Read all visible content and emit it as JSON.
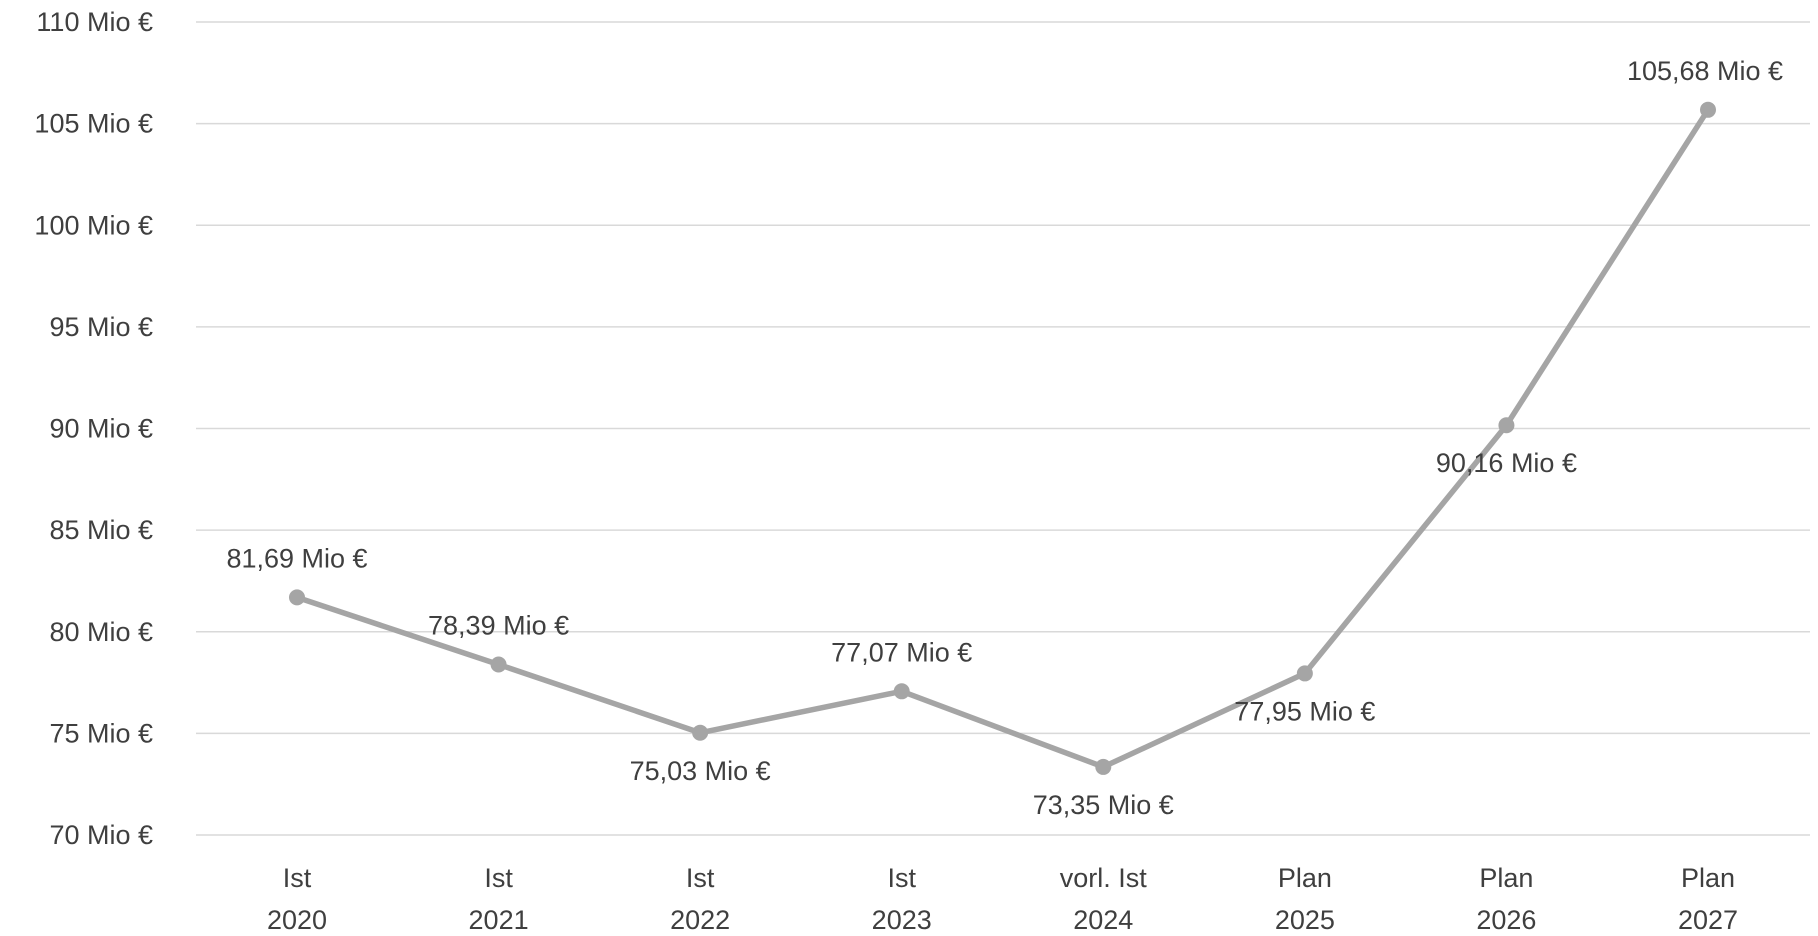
{
  "chart_data": {
    "type": "line",
    "categories": [
      [
        "Ist",
        "2020"
      ],
      [
        "Ist",
        "2021"
      ],
      [
        "Ist",
        "2022"
      ],
      [
        "Ist",
        "2023"
      ],
      [
        "vorl. Ist",
        "2024"
      ],
      [
        "Plan",
        "2025"
      ],
      [
        "Plan",
        "2026"
      ],
      [
        "Plan",
        "2027"
      ]
    ],
    "series": [
      {
        "values": [
          81.69,
          78.39,
          75.03,
          77.07,
          73.35,
          77.95,
          90.16,
          105.68
        ],
        "data_labels": [
          "81,69 Mio €",
          "78,39 Mio €",
          "75,03 Mio €",
          "77,07 Mio €",
          "73,35 Mio €",
          "77,95 Mio €",
          "90,16 Mio €",
          "105,68 Mio €"
        ],
        "color": "#a5a5a5"
      }
    ],
    "yticks": [
      {
        "value": 70,
        "label": "70 Mio €"
      },
      {
        "value": 75,
        "label": "75 Mio €"
      },
      {
        "value": 80,
        "label": "80 Mio €"
      },
      {
        "value": 85,
        "label": "85 Mio €"
      },
      {
        "value": 90,
        "label": "90 Mio €"
      },
      {
        "value": 95,
        "label": "95 Mio €"
      },
      {
        "value": 100,
        "label": "100 Mio €"
      },
      {
        "value": 105,
        "label": "105 Mio €"
      },
      {
        "value": 110,
        "label": "110 Mio €"
      }
    ],
    "ylim": [
      70,
      110
    ],
    "grid": true,
    "title": "",
    "xlabel": "",
    "ylabel": ""
  }
}
